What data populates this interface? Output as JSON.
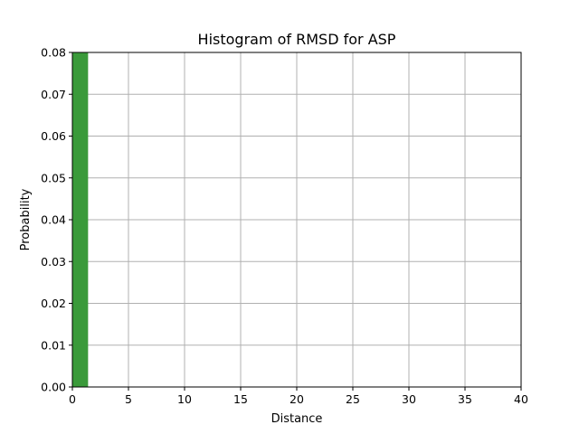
{
  "chart_data": {
    "type": "bar",
    "title": "Histogram of RMSD for ASP",
    "xlabel": "Distance",
    "ylabel": "Probability",
    "xlim": [
      0,
      40
    ],
    "ylim": [
      0,
      0.08
    ],
    "x_ticks": [
      "0",
      "5",
      "10",
      "15",
      "20",
      "25",
      "30",
      "35",
      "40"
    ],
    "y_ticks": [
      "0.00",
      "0.01",
      "0.02",
      "0.03",
      "0.04",
      "0.05",
      "0.06",
      "0.07",
      "0.08"
    ],
    "grid": true,
    "bar_color": "#3a9a3a",
    "bins": [
      {
        "x0": 0,
        "x1": 1.4,
        "value": 0.08
      }
    ]
  }
}
